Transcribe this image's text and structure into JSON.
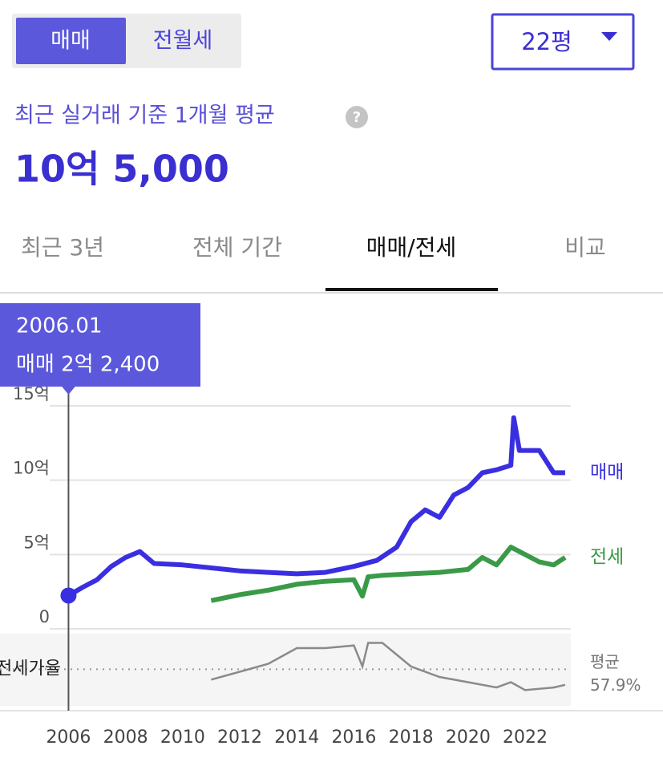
{
  "tabs": {
    "items": [
      "매매",
      "전월세"
    ],
    "active": 0
  },
  "size_select": {
    "label": "22평"
  },
  "summary": {
    "label": "최근 실거래 기준 1개월 평균",
    "value": "10억 5,000"
  },
  "period_tabs": {
    "items": [
      "최근 3년",
      "전체 기간",
      "매매/전세",
      "비교"
    ],
    "active": 2
  },
  "chart_data": {
    "type": "line",
    "tooltip": {
      "date": "2006.01",
      "text": "매매 2억 2,400"
    },
    "xlim": [
      2003.6,
      2023.6
    ],
    "xticks": [
      2006,
      2008,
      2010,
      2012,
      2014,
      2016,
      2018,
      2020,
      2022
    ],
    "ylim": [
      0,
      15
    ],
    "yticks": [
      0,
      {
        "value": 5,
        "label": "5억"
      },
      {
        "value": 10,
        "label": "10억"
      },
      {
        "value": 15,
        "label": "15억"
      }
    ],
    "grid": true,
    "series": [
      {
        "name": "매매",
        "color": "#3a2fe0",
        "x": [
          2006.0,
          2006.5,
          2007.0,
          2007.5,
          2008.0,
          2008.5,
          2009.0,
          2010.0,
          2011.0,
          2012.0,
          2013.0,
          2014.0,
          2015.0,
          2016.0,
          2016.8,
          2017.5,
          2018.0,
          2018.5,
          2019.0,
          2019.5,
          2020.0,
          2020.5,
          2021.0,
          2021.5,
          2021.6,
          2021.8,
          2022.5,
          2023.0,
          2023.4
        ],
        "values": [
          2.24,
          2.8,
          3.3,
          4.2,
          4.8,
          5.2,
          4.4,
          4.3,
          4.1,
          3.9,
          3.8,
          3.7,
          3.8,
          4.2,
          4.6,
          5.5,
          7.2,
          8.0,
          7.5,
          9.0,
          9.5,
          10.5,
          10.7,
          11.0,
          14.2,
          12.0,
          12.0,
          10.5,
          10.5
        ]
      },
      {
        "name": "전세",
        "color": "#3a9a48",
        "x": [
          2011.0,
          2012.0,
          2013.0,
          2014.0,
          2015.0,
          2016.0,
          2016.3,
          2016.5,
          2017.0,
          2018.0,
          2019.0,
          2020.0,
          2020.5,
          2021.0,
          2021.5,
          2022.0,
          2022.5,
          2023.0,
          2023.4
        ],
        "values": [
          1.9,
          2.3,
          2.6,
          3.0,
          3.2,
          3.3,
          2.2,
          3.5,
          3.6,
          3.7,
          3.8,
          4.0,
          4.8,
          4.3,
          5.5,
          5.0,
          4.5,
          4.3,
          4.8
        ]
      }
    ],
    "ratio": {
      "name": "전세가율",
      "color": "#8a8a8a",
      "x": [
        2011.0,
        2012.0,
        2013.0,
        2014.0,
        2015.0,
        2016.0,
        2016.3,
        2016.5,
        2017.0,
        2018.0,
        2019.0,
        2020.0,
        2021.0,
        2021.5,
        2022.0,
        2023.0,
        2023.4
      ],
      "values": [
        50,
        56,
        62,
        74,
        74,
        76,
        60,
        78,
        78,
        60,
        52,
        48,
        44,
        48,
        42,
        44,
        46
      ],
      "ylim": [
        30,
        85
      ],
      "average_label": "평균",
      "average": {
        "value": 57.9,
        "label": "57.9%"
      }
    }
  }
}
